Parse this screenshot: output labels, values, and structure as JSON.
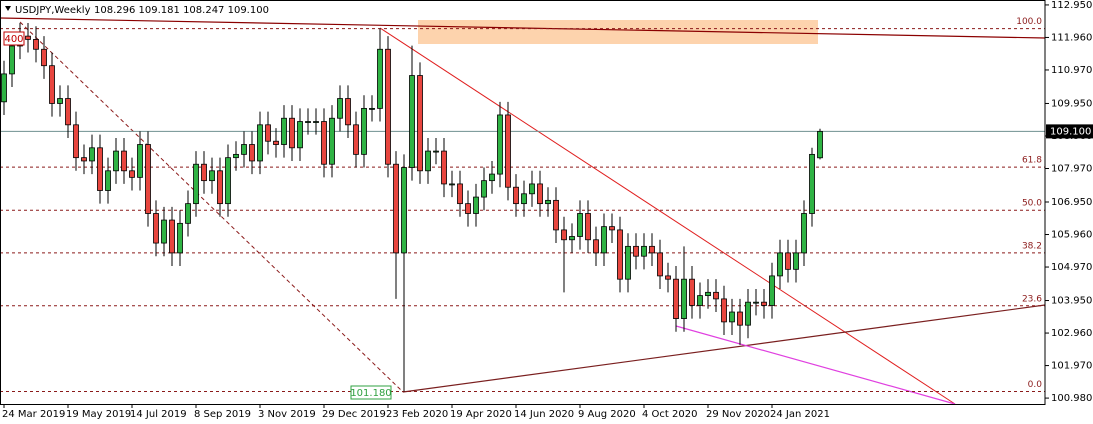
{
  "chart_data": {
    "type": "candlestick",
    "symbol": "USDJPY,Weekly",
    "ohlc_text": "108.296 109.181 108.247 109.100",
    "categories": [
      "24 Mar 2019",
      null,
      null,
      null,
      null,
      null,
      null,
      null,
      "19 May 2019",
      null,
      null,
      null,
      null,
      null,
      null,
      null,
      "14 Jul 2019",
      null,
      null,
      null,
      null,
      null,
      null,
      null,
      "8 Sep 2019",
      null,
      null,
      null,
      null,
      null,
      null,
      null,
      "3 Nov 2019",
      null,
      null,
      null,
      null,
      null,
      null,
      null,
      "29 Dec 2019",
      null,
      null,
      null,
      null,
      null,
      null,
      null,
      "23 Feb 2020",
      null,
      null,
      null,
      null,
      null,
      null,
      null,
      "19 Apr 2020",
      null,
      null,
      null,
      null,
      null,
      null,
      null,
      "14 Jun 2020",
      null,
      null,
      null,
      null,
      null,
      null,
      null,
      "9 Aug 2020",
      null,
      null,
      null,
      null,
      null,
      null,
      null,
      "4 Oct 2020",
      null,
      null,
      null,
      null,
      null,
      null,
      null,
      "29 Nov 2020",
      null,
      null,
      null,
      null,
      null,
      null,
      null,
      "24 Jan 2021",
      null,
      null,
      null,
      null,
      null,
      null
    ],
    "open": [
      110.0,
      110.85,
      111.7,
      112.0,
      111.9,
      111.6,
      111.1,
      109.95,
      110.1,
      109.3,
      108.3,
      108.2,
      108.6,
      107.3,
      107.9,
      108.5,
      107.9,
      107.7,
      108.7,
      106.6,
      105.7,
      106.4,
      105.4,
      106.3,
      106.9,
      108.1,
      107.6,
      107.9,
      106.9,
      108.3,
      108.4,
      108.7,
      108.2,
      109.3,
      108.8,
      108.7,
      109.5,
      108.6,
      109.4,
      109.4,
      109.4,
      108.1,
      109.5,
      110.1,
      109.3,
      108.4,
      109.8,
      109.8,
      111.6,
      108.1,
      105.4,
      108.0,
      110.8,
      107.9,
      108.5,
      108.5,
      107.5,
      107.5,
      106.9,
      106.6,
      107.1,
      107.6,
      107.8,
      109.6,
      107.4,
      106.9,
      107.2,
      107.5,
      106.9,
      107.0,
      106.1,
      105.8,
      105.9,
      106.6,
      105.8,
      105.4,
      106.2,
      106.1,
      104.6,
      105.6,
      105.3,
      105.6,
      105.4,
      104.7,
      104.6,
      103.4,
      104.6,
      103.8,
      104.1,
      104.2,
      104.0,
      103.3,
      103.6,
      103.2,
      103.9,
      103.9,
      103.8,
      104.7,
      105.4,
      104.9,
      105.4,
      106.6,
      108.296
    ],
    "high": [
      111.25,
      112.1,
      112.4,
      112.4,
      112.3,
      112.0,
      111.5,
      110.5,
      110.5,
      109.7,
      108.7,
      109.0,
      109.0,
      108.3,
      108.9,
      108.9,
      108.3,
      109.1,
      109.1,
      107.0,
      106.8,
      106.8,
      106.7,
      107.3,
      108.5,
      108.5,
      108.3,
      108.3,
      108.7,
      108.8,
      109.1,
      109.1,
      109.7,
      109.7,
      109.2,
      109.9,
      109.9,
      109.8,
      109.8,
      109.8,
      109.8,
      109.9,
      110.5,
      110.5,
      109.7,
      110.2,
      110.2,
      112.23,
      112.0,
      108.5,
      108.4,
      111.71,
      111.2,
      108.9,
      108.9,
      108.9,
      107.9,
      107.9,
      107.3,
      107.5,
      108.0,
      108.2,
      110.0,
      110.0,
      107.8,
      107.6,
      107.9,
      107.9,
      107.4,
      107.4,
      106.5,
      106.3,
      107.0,
      107.0,
      106.2,
      106.6,
      106.6,
      106.5,
      106.0,
      106.0,
      106.0,
      106.0,
      105.8,
      105.1,
      105.0,
      105.6,
      105.0,
      104.5,
      104.6,
      104.6,
      104.4,
      104.0,
      104.0,
      104.3,
      104.3,
      104.3,
      105.1,
      105.8,
      105.8,
      105.8,
      107.0,
      108.6,
      109.181
    ],
    "low": [
      109.6,
      110.45,
      111.3,
      111.5,
      111.2,
      110.7,
      109.55,
      109.55,
      108.9,
      107.9,
      107.8,
      107.8,
      106.9,
      106.9,
      107.5,
      107.5,
      107.3,
      107.3,
      106.2,
      105.3,
      105.3,
      105.0,
      105.0,
      105.9,
      106.5,
      107.2,
      107.2,
      106.5,
      106.5,
      107.9,
      108.0,
      107.8,
      107.8,
      108.4,
      108.3,
      108.3,
      108.2,
      108.2,
      109.0,
      109.0,
      107.7,
      107.7,
      109.1,
      108.9,
      108.0,
      108.0,
      109.4,
      109.4,
      107.7,
      104.0,
      101.18,
      107.6,
      107.5,
      107.5,
      108.1,
      107.1,
      107.1,
      106.5,
      106.2,
      106.2,
      106.7,
      107.2,
      107.4,
      107.0,
      106.5,
      106.5,
      106.8,
      106.5,
      106.5,
      105.7,
      104.2,
      105.4,
      105.5,
      105.4,
      105.0,
      105.0,
      105.7,
      104.2,
      104.2,
      104.9,
      104.9,
      105.0,
      104.3,
      104.2,
      103.0,
      103.0,
      103.4,
      103.4,
      103.7,
      103.6,
      102.9,
      102.9,
      102.6,
      102.8,
      103.5,
      103.4,
      103.4,
      104.3,
      104.5,
      104.5,
      105.0,
      106.2,
      108.247
    ],
    "close": [
      110.85,
      111.7,
      112.0,
      111.9,
      111.6,
      111.1,
      109.95,
      110.1,
      109.3,
      108.3,
      108.2,
      108.6,
      107.3,
      107.9,
      108.5,
      107.9,
      107.7,
      108.7,
      106.6,
      105.7,
      106.4,
      105.4,
      106.3,
      106.9,
      108.1,
      107.6,
      107.9,
      106.9,
      108.3,
      108.4,
      108.7,
      108.2,
      109.3,
      108.8,
      108.7,
      109.5,
      108.6,
      109.4,
      109.4,
      109.4,
      108.1,
      109.5,
      110.1,
      109.3,
      108.4,
      109.8,
      109.8,
      111.6,
      108.1,
      105.4,
      108.0,
      110.8,
      107.9,
      108.5,
      108.5,
      107.5,
      107.5,
      106.9,
      106.6,
      107.1,
      107.6,
      107.8,
      109.6,
      107.4,
      106.9,
      107.2,
      107.5,
      106.9,
      107.0,
      106.1,
      105.8,
      105.9,
      106.6,
      105.8,
      105.4,
      106.2,
      106.1,
      104.6,
      105.6,
      105.3,
      105.6,
      105.4,
      104.7,
      104.6,
      103.4,
      104.6,
      103.8,
      104.1,
      104.2,
      104.0,
      103.3,
      103.6,
      103.2,
      103.9,
      103.9,
      103.8,
      104.7,
      105.4,
      104.9,
      105.4,
      106.6,
      108.4,
      109.1
    ],
    "up_color": "#2fb344",
    "down_color": "#e8463f",
    "ylim": [
      100.8,
      113.1
    ],
    "yticks": [
      {
        "value": 112.95,
        "label": "112.950"
      },
      {
        "value": 111.96,
        "label": "111.960"
      },
      {
        "value": 110.97,
        "label": "110.970"
      },
      {
        "value": 109.95,
        "label": "109.950"
      },
      {
        "value": 108.96,
        "label": "108.960"
      },
      {
        "value": 107.97,
        "label": "107.970"
      },
      {
        "value": 106.95,
        "label": "106.950"
      },
      {
        "value": 105.96,
        "label": "105.960"
      },
      {
        "value": 104.97,
        "label": "104.970"
      },
      {
        "value": 103.95,
        "label": "103.950"
      },
      {
        "value": 102.96,
        "label": "102.960"
      },
      {
        "value": 101.97,
        "label": "101.970"
      },
      {
        "value": 100.98,
        "label": "100.980"
      }
    ],
    "fib_levels": [
      {
        "price": 112.23,
        "label": "100.0"
      },
      {
        "price": 108.01,
        "label": "61.8"
      },
      {
        "price": 106.7,
        "label": "50.0"
      },
      {
        "price": 105.4,
        "label": "38.2"
      },
      {
        "price": 103.79,
        "label": "23.6"
      },
      {
        "price": 101.18,
        "label": "0.0"
      }
    ],
    "current_price": {
      "value": 109.1,
      "label": "109.100"
    },
    "annotations": [
      "400",
      "101.180"
    ],
    "grid": false
  }
}
